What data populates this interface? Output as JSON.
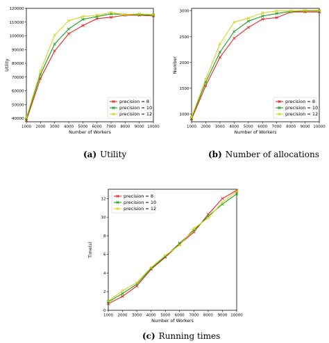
{
  "chart_data": [
    {
      "id": "a",
      "type": "line",
      "caption_letter": "(a)",
      "caption_text": "Utility",
      "xlabel": "Number of Workers",
      "ylabel": "Utility",
      "x": [
        1000,
        2000,
        3000,
        4000,
        5000,
        6000,
        7000,
        8000,
        9000,
        10000
      ],
      "xticks": [
        "1000",
        "2000",
        "3000",
        "4000",
        "5000",
        "6000",
        "7000",
        "8000",
        "9000",
        "10000"
      ],
      "yticks": [
        "40000",
        "50000",
        "60000",
        "70000",
        "80000",
        "90000",
        "100000",
        "110000",
        "120000"
      ],
      "xlim": [
        1000,
        10000
      ],
      "ylim": [
        37500,
        120000
      ],
      "grid": false,
      "legend_position": "lower-right",
      "series": [
        {
          "name": "precision = 8",
          "color": "#e8221f",
          "marker": "x",
          "values": [
            38500,
            69000,
            89000,
            101500,
            107500,
            112500,
            113500,
            115000,
            115000,
            114500
          ]
        },
        {
          "name": "precision = 10",
          "color": "#1a9e1a",
          "marker": "x",
          "values": [
            39500,
            72000,
            94000,
            105000,
            112000,
            114000,
            116000,
            115500,
            115500,
            115000
          ]
        },
        {
          "name": "precision = 12",
          "color": "#d4d41e",
          "marker": "x",
          "values": [
            40500,
            74500,
            100500,
            111000,
            114000,
            115000,
            117000,
            115500,
            116000,
            115500
          ]
        }
      ]
    },
    {
      "id": "b",
      "type": "line",
      "caption_letter": "(b)",
      "caption_text": "Number of allocations",
      "xlabel": "Number of Workers",
      "ylabel": "Number",
      "x": [
        1000,
        2000,
        3000,
        4000,
        5000,
        6000,
        7000,
        8000,
        9000,
        10000
      ],
      "xticks": [
        "1000",
        "2000",
        "3000",
        "4000",
        "5000",
        "6000",
        "7000",
        "8000",
        "9000",
        "10000"
      ],
      "yticks": [
        "1000",
        "1500",
        "2000",
        "2500",
        "3000"
      ],
      "xlim": [
        1000,
        10000
      ],
      "ylim": [
        850,
        3050
      ],
      "grid": false,
      "legend_position": "lower-right",
      "series": [
        {
          "name": "precision = 8",
          "color": "#e8221f",
          "marker": "x",
          "values": [
            900,
            1550,
            2100,
            2470,
            2680,
            2840,
            2870,
            2980,
            2980,
            2980
          ]
        },
        {
          "name": "precision = 10",
          "color": "#1a9e1a",
          "marker": "x",
          "values": [
            920,
            1620,
            2200,
            2600,
            2800,
            2900,
            2950,
            2990,
            3000,
            3000
          ]
        },
        {
          "name": "precision = 12",
          "color": "#d4d41e",
          "marker": "x",
          "values": [
            940,
            1680,
            2360,
            2780,
            2860,
            2960,
            3000,
            3000,
            3010,
            3010
          ]
        }
      ]
    },
    {
      "id": "c",
      "type": "line",
      "caption_letter": "(c)",
      "caption_text": "Running times",
      "xlabel": "Number of Workers",
      "ylabel": "Time(s)",
      "x": [
        1000,
        2000,
        3000,
        4000,
        5000,
        6000,
        7000,
        8000,
        9000,
        10000
      ],
      "xticks": [
        "1000",
        "2000",
        "3000",
        "4000",
        "5000",
        "6000",
        "7000",
        "8000",
        "9000",
        "10000"
      ],
      "yticks": [
        "0",
        "2",
        "4",
        "6",
        "8",
        "10",
        "12"
      ],
      "xlim": [
        1000,
        10000
      ],
      "ylim": [
        0,
        13
      ],
      "grid": false,
      "legend_position": "upper-left",
      "series": [
        {
          "name": "precision = 8",
          "color": "#e8221f",
          "marker": "x",
          "values": [
            0.7,
            1.5,
            2.6,
            4.4,
            5.7,
            7.1,
            8.4,
            10.3,
            12.0,
            12.9
          ]
        },
        {
          "name": "precision = 10",
          "color": "#1a9e1a",
          "marker": "x",
          "values": [
            0.9,
            1.8,
            2.8,
            4.5,
            5.8,
            7.2,
            8.6,
            10.1,
            11.4,
            12.5
          ]
        },
        {
          "name": "precision = 12",
          "color": "#d4d41e",
          "marker": "x",
          "values": [
            1.0,
            2.1,
            3.0,
            4.6,
            5.9,
            7.0,
            8.8,
            9.9,
            11.6,
            12.8
          ]
        }
      ]
    }
  ]
}
